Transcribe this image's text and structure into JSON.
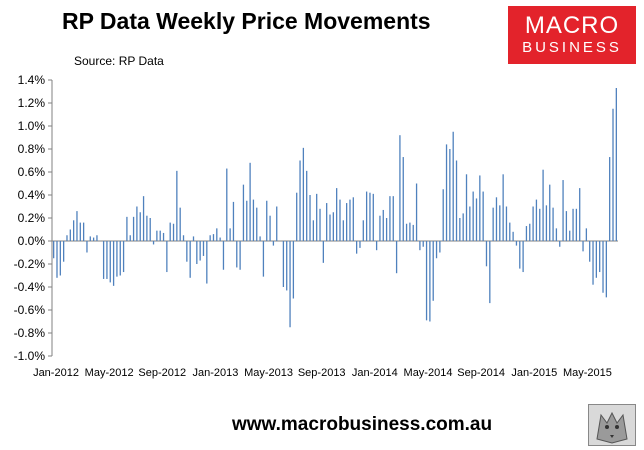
{
  "header": {
    "title": "RP Data Weekly Price Movements",
    "source": "Source: RP Data"
  },
  "logo": {
    "line1": "MACRO",
    "line2": "BUSINESS",
    "color": "#e3232b"
  },
  "footer": {
    "url": "www.macrobusiness.com.au"
  },
  "wolf_icon": "wolf-logo-icon",
  "chart_data": {
    "type": "bar",
    "title": "RP Data Weekly Price Movements",
    "xlabel": "",
    "ylabel": "",
    "ylim": [
      -1.0,
      1.4
    ],
    "y_ticks": [
      -1.0,
      -0.8,
      -0.6,
      -0.4,
      -0.2,
      0.0,
      0.2,
      0.4,
      0.6,
      0.8,
      1.0,
      1.2,
      1.4
    ],
    "y_tick_labels": [
      "-1.0%",
      "-0.8%",
      "-0.6%",
      "-0.4%",
      "-0.2%",
      "0.0%",
      "0.2%",
      "0.4%",
      "0.6%",
      "0.8%",
      "1.0%",
      "1.2%",
      "1.4%"
    ],
    "x_tick_labels": [
      "Jan-2012",
      "May-2012",
      "Sep-2012",
      "Jan-2013",
      "May-2013",
      "Sep-2013",
      "Jan-2014",
      "May-2014",
      "Sep-2014",
      "Jan-2015",
      "May-2015"
    ],
    "bar_color": "#4f81bd",
    "grid": false,
    "values": [
      -0.15,
      -0.32,
      -0.3,
      -0.18,
      0.05,
      0.1,
      0.18,
      0.26,
      0.16,
      0.16,
      -0.1,
      0.04,
      0.03,
      0.05,
      0.0,
      -0.33,
      -0.33,
      -0.36,
      -0.39,
      -0.31,
      -0.3,
      -0.27,
      0.21,
      0.05,
      0.21,
      0.3,
      0.25,
      0.39,
      0.22,
      0.2,
      -0.03,
      0.09,
      0.09,
      0.07,
      -0.27,
      0.16,
      0.15,
      0.61,
      0.29,
      0.05,
      -0.18,
      -0.32,
      0.04,
      -0.2,
      -0.17,
      -0.13,
      -0.37,
      0.05,
      0.06,
      0.11,
      0.03,
      -0.25,
      0.63,
      0.11,
      0.34,
      -0.23,
      -0.25,
      0.49,
      0.35,
      0.68,
      0.36,
      0.29,
      0.04,
      -0.31,
      0.35,
      0.22,
      -0.04,
      0.3,
      0.0,
      -0.4,
      -0.43,
      -0.75,
      -0.5,
      0.42,
      0.7,
      0.81,
      0.61,
      0.4,
      0.18,
      0.41,
      0.28,
      -0.19,
      0.33,
      0.23,
      0.25,
      0.46,
      0.36,
      0.18,
      0.33,
      0.36,
      0.38,
      -0.11,
      -0.06,
      0.18,
      0.43,
      0.42,
      0.41,
      -0.08,
      0.22,
      0.27,
      0.2,
      0.39,
      0.39,
      -0.28,
      0.92,
      0.73,
      0.15,
      0.16,
      0.14,
      0.5,
      -0.08,
      -0.05,
      -0.69,
      -0.7,
      -0.52,
      -0.15,
      -0.1,
      0.45,
      0.84,
      0.8,
      0.95,
      0.7,
      0.2,
      0.24,
      0.58,
      0.3,
      0.43,
      0.37,
      0.57,
      0.43,
      -0.22,
      -0.54,
      0.29,
      0.38,
      0.31,
      0.58,
      0.3,
      0.16,
      0.08,
      -0.04,
      -0.24,
      -0.27,
      0.13,
      0.15,
      0.3,
      0.36,
      0.28,
      0.62,
      0.31,
      0.49,
      0.29,
      0.11,
      -0.05,
      0.53,
      0.26,
      0.09,
      0.28,
      0.28,
      0.46,
      -0.09,
      0.11,
      -0.18,
      -0.38,
      -0.32,
      -0.27,
      -0.45,
      -0.49,
      0.73,
      1.15,
      1.33
    ]
  }
}
